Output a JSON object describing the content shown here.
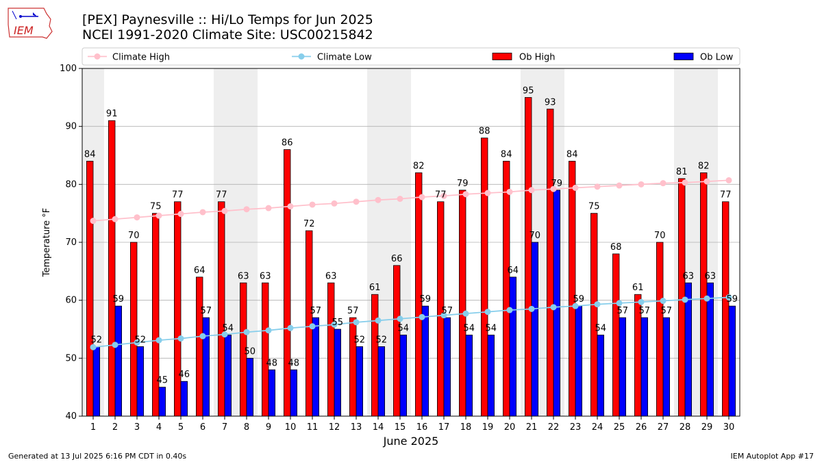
{
  "title_line1": "[PEX] Paynesville :: Hi/Lo Temps for Jun 2025",
  "title_line2": "NCEI 1991-2020 Climate Site: USC00215842",
  "logo_text": "IEM",
  "footer_left": "Generated at 13 Jul 2025 6:16 PM CDT in 0.40s",
  "footer_right": "IEM Autoplot App #17",
  "colors": {
    "ob_high": "#ff0000",
    "ob_low": "#0000ff",
    "climate_high": "#ffc0cb",
    "climate_low": "#87ceeb",
    "weekend_band": "#eeeeee",
    "grid": "#b0b0b0"
  },
  "chart_data": {
    "type": "bar",
    "xlabel": "June 2025",
    "ylabel": "Temperature °F",
    "ylim": [
      40,
      100
    ],
    "yticks": [
      40,
      50,
      60,
      70,
      80,
      90,
      100
    ],
    "grid": "horizontal",
    "legend_position": "top",
    "categories": [
      "1",
      "2",
      "3",
      "4",
      "5",
      "6",
      "7",
      "8",
      "9",
      "10",
      "11",
      "12",
      "13",
      "14",
      "15",
      "16",
      "17",
      "18",
      "19",
      "20",
      "21",
      "22",
      "23",
      "24",
      "25",
      "26",
      "27",
      "28",
      "29",
      "30"
    ],
    "shaded_days": [
      1,
      7,
      8,
      14,
      15,
      21,
      22,
      28,
      29
    ],
    "series": [
      {
        "name": "Ob High",
        "kind": "bar",
        "values": [
          84,
          91,
          70,
          75,
          77,
          64,
          77,
          63,
          63,
          86,
          72,
          63,
          57,
          61,
          66,
          82,
          77,
          79,
          88,
          84,
          95,
          93,
          84,
          75,
          68,
          61,
          70,
          81,
          82,
          77
        ]
      },
      {
        "name": "Ob Low",
        "kind": "bar",
        "values": [
          52,
          59,
          52,
          45,
          46,
          57,
          54,
          50,
          48,
          48,
          57,
          55,
          52,
          52,
          54,
          59,
          57,
          54,
          54,
          64,
          70,
          79,
          59,
          54,
          57,
          57,
          57,
          63,
          63,
          59
        ]
      },
      {
        "name": "Climate High",
        "kind": "line",
        "values": [
          73.7,
          74.0,
          74.3,
          74.6,
          74.9,
          75.2,
          75.4,
          75.7,
          75.9,
          76.2,
          76.5,
          76.7,
          77.0,
          77.3,
          77.5,
          77.8,
          78.0,
          78.3,
          78.5,
          78.7,
          79.0,
          79.2,
          79.4,
          79.6,
          79.8,
          80.0,
          80.2,
          80.3,
          80.5,
          80.7
        ]
      },
      {
        "name": "Climate Low",
        "kind": "line",
        "values": [
          51.9,
          52.3,
          52.7,
          53.1,
          53.4,
          53.8,
          54.1,
          54.5,
          54.8,
          55.2,
          55.5,
          55.8,
          56.2,
          56.5,
          56.8,
          57.1,
          57.4,
          57.7,
          58.0,
          58.3,
          58.5,
          58.8,
          59.0,
          59.3,
          59.5,
          59.7,
          59.9,
          60.1,
          60.3,
          60.5
        ]
      }
    ]
  }
}
